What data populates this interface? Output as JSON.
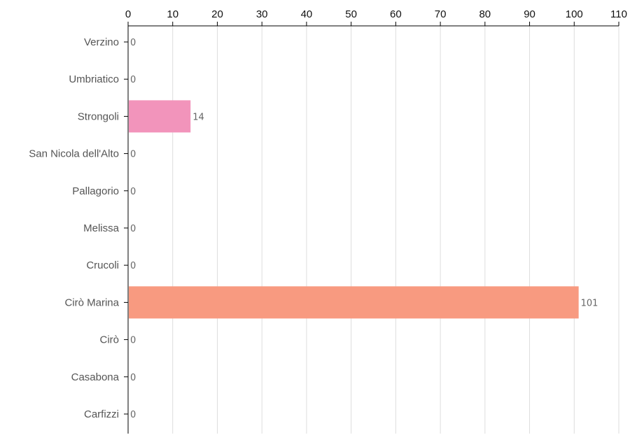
{
  "chart_data": {
    "type": "bar",
    "orientation": "horizontal",
    "title": "",
    "xlabel": "",
    "ylabel": "",
    "xlim": [
      0,
      110
    ],
    "x_ticks": [
      "0",
      "10",
      "20",
      "30",
      "40",
      "50",
      "60",
      "70",
      "80",
      "90",
      "100",
      "110"
    ],
    "x_axis_position": "top",
    "grid": "vertical",
    "categories": [
      "Verzino",
      "Umbriatico",
      "Strongoli",
      "San Nicola dell'Alto",
      "Pallagorio",
      "Melissa",
      "Crucoli",
      "Cirò Marina",
      "Cirò",
      "Casabona",
      "Carfizzi"
    ],
    "values": [
      0,
      0,
      14,
      0,
      0,
      0,
      0,
      101,
      0,
      0,
      0
    ],
    "value_labels": [
      "0",
      "0",
      "14",
      "0",
      "0",
      "0",
      "0",
      "101",
      "0",
      "0",
      "0"
    ],
    "bar_colors": [
      "#8dd3c7",
      "#ffffb3",
      "#f294bb",
      "#bebada",
      "#fb8072",
      "#80b1d3",
      "#fdb462",
      "#f89a80",
      "#b3de69",
      "#fccde5",
      "#d9d9d9"
    ]
  }
}
